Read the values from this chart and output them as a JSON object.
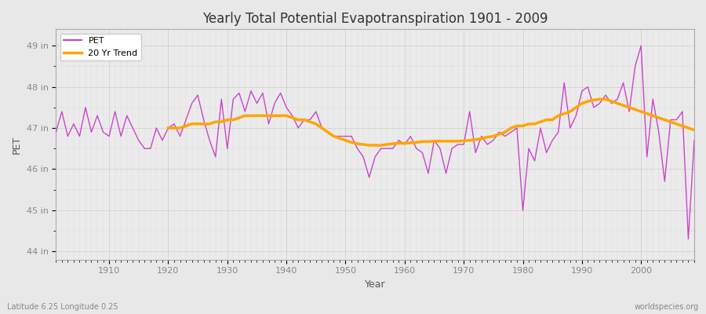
{
  "title": "Yearly Total Potential Evapotranspiration 1901 - 2009",
  "xlabel": "Year",
  "ylabel": "PET",
  "subtitle": "Latitude 6.25 Longitude 0.25",
  "watermark": "worldspecies.org",
  "ylim": [
    43.8,
    49.4
  ],
  "yticks": [
    44,
    45,
    46,
    47,
    48,
    49
  ],
  "ytick_labels": [
    "44 in",
    "45 in",
    "46 in",
    "47 in",
    "48 in",
    "49 in"
  ],
  "pet_color": "#cc44cc",
  "trend_color": "#ffa500",
  "bg_color": "#e8e8e8",
  "plot_bg_color": "#ebebeb",
  "legend_labels": [
    "PET",
    "20 Yr Trend"
  ],
  "years": [
    1901,
    1902,
    1903,
    1904,
    1905,
    1906,
    1907,
    1908,
    1909,
    1910,
    1911,
    1912,
    1913,
    1914,
    1915,
    1916,
    1917,
    1918,
    1919,
    1920,
    1921,
    1922,
    1923,
    1924,
    1925,
    1926,
    1927,
    1928,
    1929,
    1930,
    1931,
    1932,
    1933,
    1934,
    1935,
    1936,
    1937,
    1938,
    1939,
    1940,
    1941,
    1942,
    1943,
    1944,
    1945,
    1946,
    1947,
    1948,
    1949,
    1950,
    1951,
    1952,
    1953,
    1954,
    1955,
    1956,
    1957,
    1958,
    1959,
    1960,
    1961,
    1962,
    1963,
    1964,
    1965,
    1966,
    1967,
    1968,
    1969,
    1970,
    1971,
    1972,
    1973,
    1974,
    1975,
    1976,
    1977,
    1978,
    1979,
    1980,
    1981,
    1982,
    1983,
    1984,
    1985,
    1986,
    1987,
    1988,
    1989,
    1990,
    1991,
    1992,
    1993,
    1994,
    1995,
    1996,
    1997,
    1998,
    1999,
    2000,
    2001,
    2002,
    2003,
    2004,
    2005,
    2006,
    2007,
    2008,
    2009
  ],
  "pet_values": [
    46.9,
    47.4,
    46.8,
    47.1,
    46.8,
    47.5,
    46.9,
    47.3,
    46.9,
    46.8,
    47.4,
    46.8,
    47.3,
    47.0,
    46.7,
    46.5,
    46.5,
    47.0,
    46.7,
    47.0,
    47.1,
    46.8,
    47.2,
    47.6,
    47.8,
    47.2,
    46.7,
    46.3,
    47.7,
    46.5,
    47.7,
    47.85,
    47.4,
    47.9,
    47.6,
    47.85,
    47.1,
    47.6,
    47.85,
    47.5,
    47.3,
    47.0,
    47.2,
    47.2,
    47.4,
    47.0,
    46.9,
    46.8,
    46.8,
    46.8,
    46.8,
    46.5,
    46.3,
    45.8,
    46.3,
    46.5,
    46.5,
    46.5,
    46.7,
    46.6,
    46.8,
    46.5,
    46.4,
    45.9,
    46.7,
    46.5,
    45.9,
    46.5,
    46.6,
    46.6,
    47.4,
    46.4,
    46.8,
    46.6,
    46.7,
    46.9,
    46.8,
    46.9,
    47.0,
    45.0,
    46.5,
    46.2,
    47.0,
    46.4,
    46.7,
    46.9,
    48.1,
    47.0,
    47.3,
    47.9,
    48.0,
    47.5,
    47.6,
    47.8,
    47.6,
    47.7,
    48.1,
    47.4,
    48.5,
    49.0,
    46.3,
    47.7,
    46.9,
    45.7,
    47.2,
    47.2,
    47.4,
    44.3,
    46.7
  ],
  "trend_values": [
    null,
    null,
    null,
    null,
    null,
    null,
    null,
    null,
    null,
    null,
    null,
    null,
    null,
    null,
    null,
    null,
    null,
    null,
    null,
    47.0,
    47.0,
    47.0,
    47.05,
    47.1,
    47.1,
    47.1,
    47.1,
    47.15,
    47.15,
    47.2,
    47.2,
    47.25,
    47.3,
    47.3,
    47.3,
    47.3,
    47.3,
    47.3,
    47.3,
    47.3,
    47.25,
    47.2,
    47.2,
    47.15,
    47.1,
    47.0,
    46.9,
    46.8,
    46.75,
    46.7,
    46.65,
    46.62,
    46.6,
    46.58,
    46.58,
    46.58,
    46.6,
    46.62,
    46.63,
    46.63,
    46.64,
    46.65,
    46.67,
    46.67,
    46.68,
    46.68,
    46.68,
    46.68,
    46.68,
    46.69,
    46.7,
    46.72,
    46.74,
    46.78,
    46.8,
    46.85,
    46.9,
    47.0,
    47.05,
    47.05,
    47.1,
    47.1,
    47.15,
    47.2,
    47.2,
    47.3,
    47.35,
    47.4,
    47.5,
    47.6,
    47.65,
    47.68,
    47.7,
    47.7,
    47.65,
    47.6,
    47.55,
    47.5,
    47.45,
    47.4,
    47.35,
    47.3,
    47.25,
    47.2,
    47.15,
    47.1,
    47.05,
    47.0,
    46.95
  ]
}
